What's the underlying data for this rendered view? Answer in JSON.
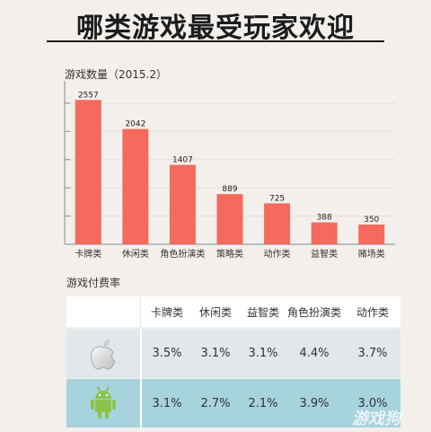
{
  "title": "哪类游戏最受玩家欢迎",
  "chart_data": {
    "type": "bar",
    "title": "游戏数量（2015.2）",
    "categories": [
      "卡牌类",
      "休闲类",
      "角色扮演类",
      "策略类",
      "动作类",
      "益智类",
      "赌场类"
    ],
    "values": [
      2557,
      2042,
      1407,
      889,
      725,
      388,
      350
    ],
    "ylim": [
      0,
      2800
    ],
    "grid": true,
    "bar_color": "#f46a5c"
  },
  "payment": {
    "label": "游戏付费率",
    "columns": [
      "卡牌类",
      "休闲类",
      "益智类",
      "角色扮演类",
      "动作类"
    ],
    "rows": [
      {
        "platform_icon": "apple-icon",
        "values": [
          "3.5%",
          "3.1%",
          "3.1%",
          "4.4%",
          "3.7%"
        ]
      },
      {
        "platform_icon": "android-icon",
        "values": [
          "3.1%",
          "2.7%",
          "2.1%",
          "3.9%",
          "3.0%"
        ]
      }
    ]
  },
  "watermark": "游戏狗"
}
